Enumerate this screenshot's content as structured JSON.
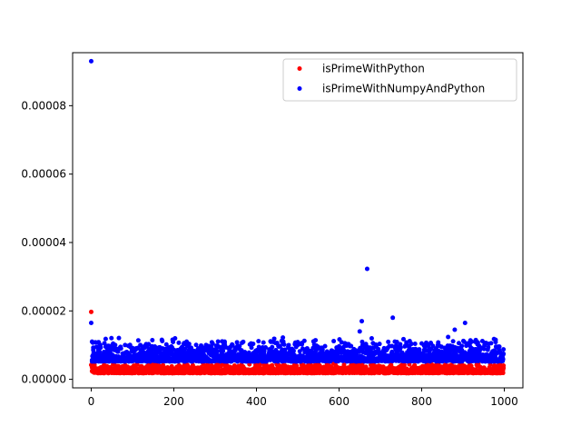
{
  "chart_data": {
    "type": "scatter",
    "title": "",
    "xlabel": "",
    "ylabel": "",
    "xlim": [
      -45,
      1045
    ],
    "ylim": [
      -2.5e-06,
      9.55e-05
    ],
    "xticks": [
      0,
      200,
      400,
      600,
      800,
      1000
    ],
    "xtick_labels": [
      "0",
      "200",
      "400",
      "600",
      "800",
      "1000"
    ],
    "yticks": [
      0,
      2e-05,
      4e-05,
      6e-05,
      8e-05
    ],
    "ytick_labels": [
      "0.00000",
      "0.00002",
      "0.00004",
      "0.00006",
      "0.00008"
    ],
    "grid": false,
    "legend_position": "top-right",
    "series": [
      {
        "name": "isPrimeWithPython",
        "color": "#ff0000",
        "points": [
          [
            0,
            1.97e-05
          ],
          [
            0,
            4.2e-06
          ],
          [
            2,
            3.5e-06
          ],
          [
            4,
            2.8e-06
          ],
          [
            600,
            5.8e-06
          ],
          [
            820,
            5.5e-06
          ],
          [
            880,
            5.2e-06
          ],
          [
            950,
            5.4e-06
          ]
        ],
        "band": {
          "x_start": 2,
          "x_end": 998,
          "y_min": 1.8e-06,
          "y_max": 4.8e-06
        }
      },
      {
        "name": "isPrimeWithNumpyAndPython",
        "color": "#0000ff",
        "points": [
          [
            0,
            9.3e-05
          ],
          [
            0,
            1.65e-05
          ],
          [
            2,
            1.1e-05
          ],
          [
            10,
            1.08e-05
          ],
          [
            35,
            1.18e-05
          ],
          [
            650,
            1.4e-05
          ],
          [
            655,
            1.7e-05
          ],
          [
            668,
            3.23e-05
          ],
          [
            730,
            1.8e-05
          ],
          [
            905,
            1.65e-05
          ],
          [
            880,
            1.45e-05
          ]
        ],
        "band": {
          "x_start": 2,
          "x_end": 998,
          "y_min": 5.2e-06,
          "y_max": 1.25e-05
        }
      }
    ]
  }
}
